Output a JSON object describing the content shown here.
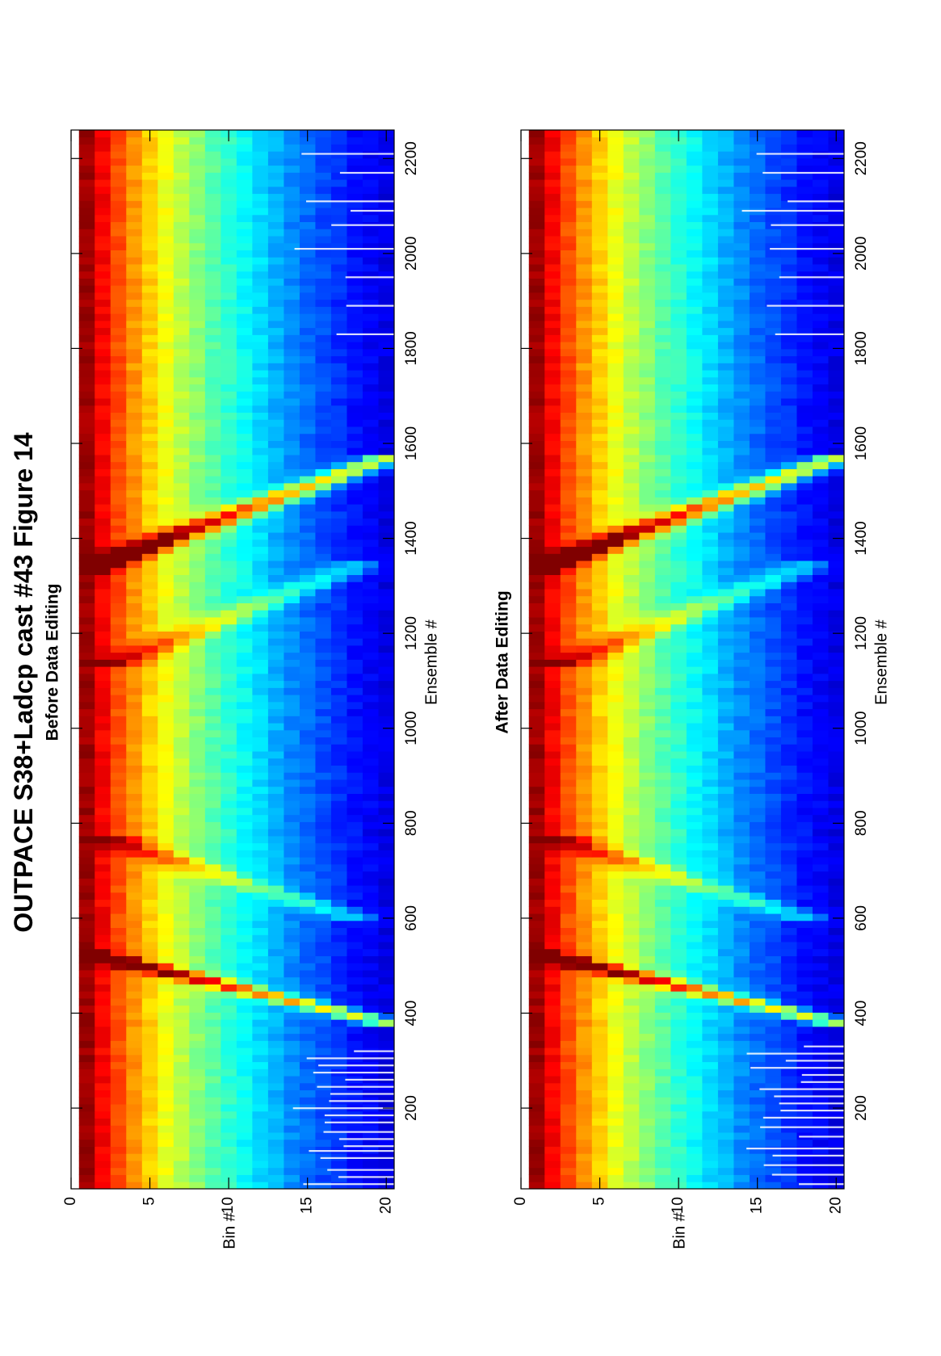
{
  "figure": {
    "title": "OUTPACE S38+Ladcp cast #43  Figure 14",
    "orientation": "rotated-90-ccw"
  },
  "chart_data": [
    {
      "type": "heatmap",
      "title": "Before Data Editing",
      "xlabel": "Ensemble #",
      "ylabel": "Bin #",
      "xlim": [
        30,
        2260
      ],
      "ylim": [
        0,
        20.5
      ],
      "x_ticks": [
        200,
        400,
        600,
        800,
        1000,
        1200,
        1400,
        1600,
        1800,
        2000,
        2200
      ],
      "y_ticks": [
        0,
        5,
        10,
        15,
        20
      ],
      "colormap": "jet",
      "grid": false,
      "bins": [
        1,
        2,
        3,
        4,
        5,
        6,
        7,
        8,
        9,
        10,
        11,
        12,
        13,
        14,
        15,
        16,
        17,
        18,
        19,
        20
      ],
      "bin_values": [
        0.97,
        0.88,
        0.8,
        0.73,
        0.67,
        0.61,
        0.56,
        0.51,
        0.46,
        0.42,
        0.38,
        0.34,
        0.3,
        0.26,
        0.23,
        0.2,
        0.17,
        0.14,
        0.12,
        0.1
      ],
      "features": [
        {
          "label": "descent streak",
          "ensemble_start": 380,
          "ensemble_end": 530,
          "bin_start": 20,
          "bin_end": 0.5
        },
        {
          "label": "descent streak",
          "ensemble_start": 1330,
          "ensemble_end": 1570,
          "bin_start": 0.5,
          "bin_end": 20
        },
        {
          "label": "secondary streak",
          "ensemble_start": 600,
          "ensemble_end": 760,
          "bin_start": 18,
          "bin_end": 3
        },
        {
          "label": "secondary streak",
          "ensemble_start": 1140,
          "ensemble_end": 1340,
          "bin_start": 3,
          "bin_end": 18
        }
      ],
      "flagged_ensembles": [
        40,
        55,
        70,
        95,
        110,
        120,
        135,
        150,
        170,
        185,
        200,
        215,
        230,
        245,
        260,
        275,
        290,
        305,
        320,
        1830,
        1890,
        1950,
        2010,
        2060,
        2090,
        2110,
        2170,
        2210
      ]
    },
    {
      "type": "heatmap",
      "title": "After Data Editing",
      "xlabel": "Ensemble #",
      "ylabel": "Bin #",
      "xlim": [
        30,
        2260
      ],
      "ylim": [
        0,
        20.5
      ],
      "x_ticks": [
        200,
        400,
        600,
        800,
        1000,
        1200,
        1400,
        1600,
        1800,
        2000,
        2200
      ],
      "y_ticks": [
        0,
        5,
        10,
        15,
        20
      ],
      "colormap": "jet",
      "grid": false,
      "bins": [
        1,
        2,
        3,
        4,
        5,
        6,
        7,
        8,
        9,
        10,
        11,
        12,
        13,
        14,
        15,
        16,
        17,
        18,
        19,
        20
      ],
      "bin_values": [
        0.97,
        0.88,
        0.8,
        0.73,
        0.67,
        0.61,
        0.56,
        0.51,
        0.46,
        0.42,
        0.38,
        0.34,
        0.3,
        0.26,
        0.23,
        0.2,
        0.17,
        0.14,
        0.12,
        0.1
      ],
      "features": [
        {
          "label": "descent streak",
          "ensemble_start": 380,
          "ensemble_end": 530,
          "bin_start": 20,
          "bin_end": 0.5
        },
        {
          "label": "descent streak",
          "ensemble_start": 1330,
          "ensemble_end": 1570,
          "bin_start": 0.5,
          "bin_end": 20
        },
        {
          "label": "secondary streak",
          "ensemble_start": 600,
          "ensemble_end": 760,
          "bin_start": 18,
          "bin_end": 3
        },
        {
          "label": "secondary streak",
          "ensemble_start": 1140,
          "ensemble_end": 1340,
          "bin_start": 3,
          "bin_end": 18
        }
      ],
      "flagged_ensembles": [
        40,
        60,
        80,
        100,
        115,
        140,
        160,
        180,
        195,
        210,
        225,
        240,
        255,
        270,
        285,
        300,
        315,
        330,
        1830,
        1890,
        1950,
        2010,
        2060,
        2090,
        2110,
        2170,
        2210
      ]
    }
  ]
}
